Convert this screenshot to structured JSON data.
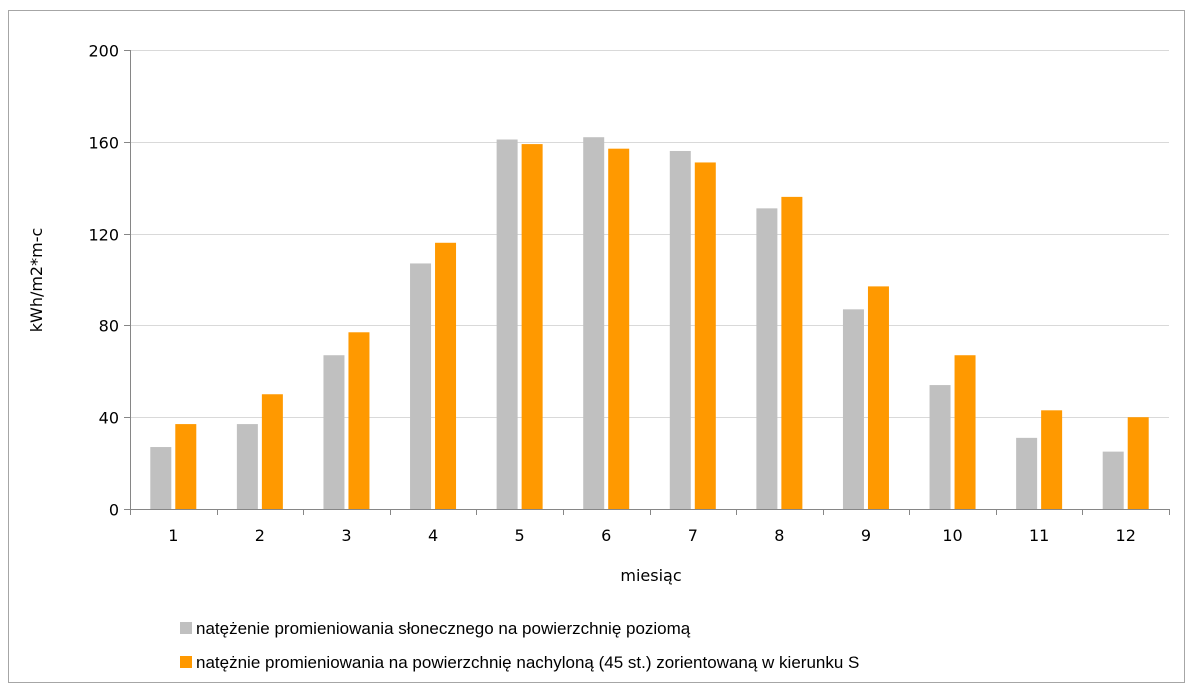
{
  "chart_data": {
    "type": "bar",
    "title": "",
    "xlabel": "miesiąc",
    "ylabel": "kWh/m2*m-c",
    "ylim": [
      0,
      200
    ],
    "yticks": [
      0,
      40,
      80,
      120,
      160,
      200
    ],
    "grid": true,
    "legend_position": "bottom",
    "categories": [
      "1",
      "2",
      "3",
      "4",
      "5",
      "6",
      "7",
      "8",
      "9",
      "10",
      "11",
      "12"
    ],
    "series": [
      {
        "name": "natężenie promieniowania słonecznego na powierzchnię poziomą",
        "color": "#c0c0c0",
        "values": [
          27,
          37,
          67,
          107,
          161,
          162,
          156,
          131,
          87,
          54,
          31,
          25
        ]
      },
      {
        "name": "natężnie promieniowania na powierzchnię nachyloną (45 st.) zorientowaną w kierunku S",
        "color": "#ff9900",
        "values": [
          37,
          50,
          77,
          116,
          159,
          157,
          151,
          136,
          97,
          67,
          43,
          40
        ]
      }
    ]
  }
}
